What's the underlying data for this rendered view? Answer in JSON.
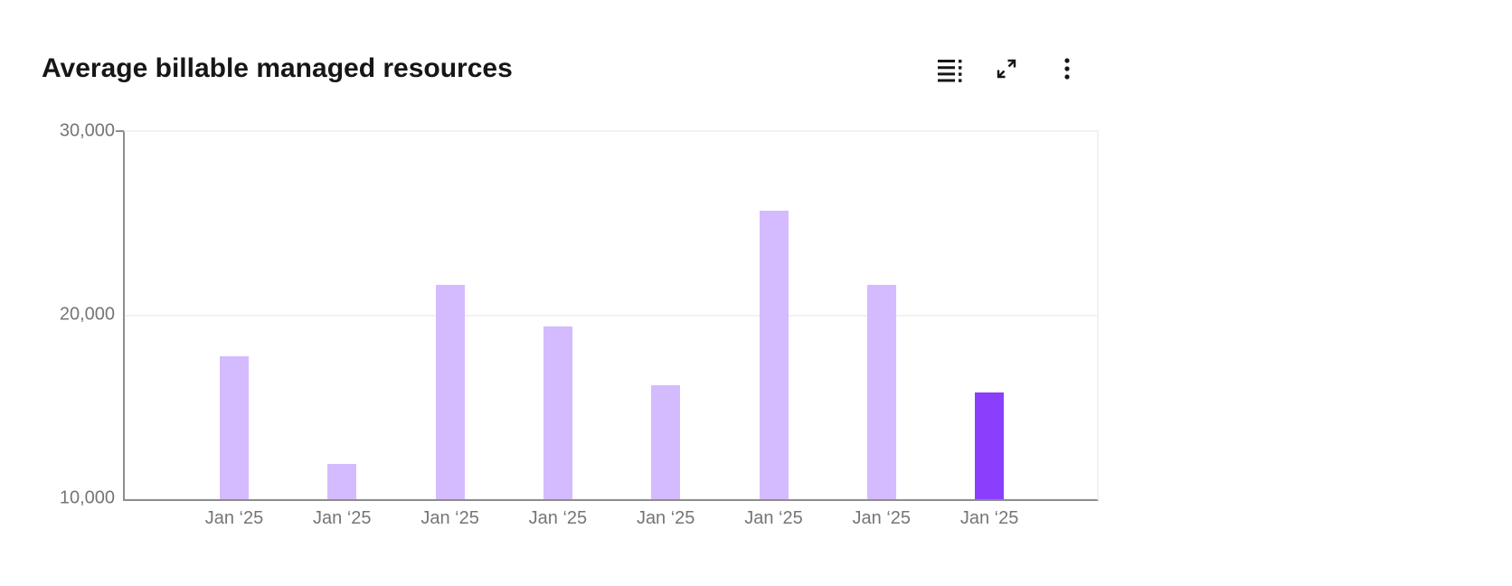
{
  "card": {
    "title": "Average billable managed resources"
  },
  "toolbar": {
    "show_data_table_label": "Show data table",
    "maximize_label": "Maximize",
    "overflow_label": "More options",
    "icons": [
      "data-table-icon",
      "maximize-icon",
      "overflow-menu-icon"
    ]
  },
  "chart_data": {
    "type": "bar",
    "title": "Average billable managed resources",
    "categories": [
      "Jan ‘25",
      "Jan ‘25",
      "Jan ‘25",
      "Jan ‘25",
      "Jan ‘25",
      "Jan ‘25",
      "Jan ‘25",
      "Jan ‘25"
    ],
    "values": [
      17800,
      11900,
      21700,
      19400,
      16200,
      25700,
      21700,
      15800
    ],
    "xlabel": "",
    "ylabel": "",
    "ylim": [
      10000,
      30000
    ],
    "yticks": [
      {
        "value": 10000,
        "label": "10,000"
      },
      {
        "value": 20000,
        "label": "20,000"
      },
      {
        "value": 30000,
        "label": "30,000"
      }
    ],
    "grid": "horizontal",
    "legend": "none",
    "bar_color": "#d4bbff",
    "highlight_color": "#8a3ffc",
    "highlight_index": 7,
    "axis_color": "#8d8d8d",
    "tick_text_color": "#757575"
  }
}
